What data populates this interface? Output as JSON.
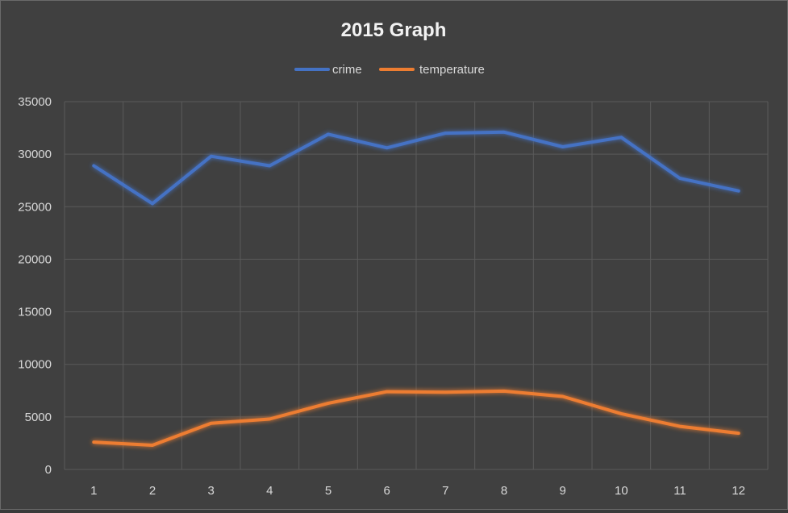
{
  "chart_data": {
    "type": "line",
    "title": "2015 Graph",
    "xlabel": "",
    "ylabel": "",
    "categories": [
      "1",
      "2",
      "3",
      "4",
      "5",
      "6",
      "7",
      "8",
      "9",
      "10",
      "11",
      "12"
    ],
    "ylim": [
      0,
      35000
    ],
    "yticks": [
      0,
      5000,
      10000,
      15000,
      20000,
      25000,
      30000,
      35000
    ],
    "grid": true,
    "legend_position": "top",
    "series": [
      {
        "name": "crime",
        "color": "#4472c4",
        "values": [
          28900,
          25300,
          29800,
          28900,
          31900,
          30600,
          32000,
          32100,
          30700,
          31600,
          27700,
          26500
        ]
      },
      {
        "name": "temperature",
        "color": "#ed7d31",
        "values": [
          2600,
          2300,
          4400,
          4800,
          6300,
          7400,
          7350,
          7450,
          6950,
          5300,
          4100,
          3450
        ]
      }
    ]
  }
}
